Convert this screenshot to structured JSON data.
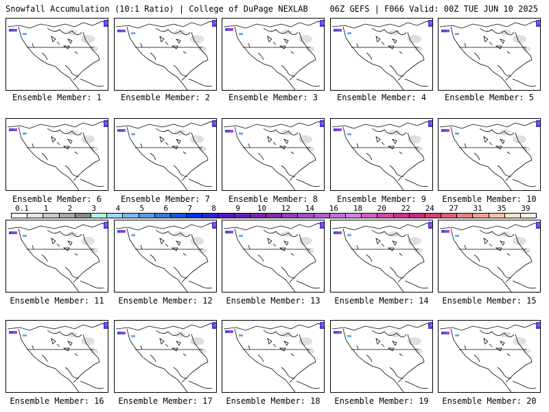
{
  "header": {
    "title": "Snowfall Accumulation (10:1 Ratio) | College of DuPage NEXLAB",
    "run_info": "06Z GEFS | F066 Valid: 00Z TUE JUN 10 2025"
  },
  "members": [
    {
      "label": "Ensemble Member: 1"
    },
    {
      "label": "Ensemble Member: 2"
    },
    {
      "label": "Ensemble Member: 3"
    },
    {
      "label": "Ensemble Member: 4"
    },
    {
      "label": "Ensemble Member: 5"
    },
    {
      "label": "Ensemble Member: 6"
    },
    {
      "label": "Ensemble Member: 7"
    },
    {
      "label": "Ensemble Member: 8"
    },
    {
      "label": "Ensemble Member: 9"
    },
    {
      "label": "Ensemble Member: 10"
    },
    {
      "label": "Ensemble Member: 11"
    },
    {
      "label": "Ensemble Member: 12"
    },
    {
      "label": "Ensemble Member: 13"
    },
    {
      "label": "Ensemble Member: 14"
    },
    {
      "label": "Ensemble Member: 15"
    },
    {
      "label": "Ensemble Member: 16"
    },
    {
      "label": "Ensemble Member: 17"
    },
    {
      "label": "Ensemble Member: 18"
    },
    {
      "label": "Ensemble Member: 19"
    },
    {
      "label": "Ensemble Member: 20"
    }
  ],
  "colorbar": {
    "labels": [
      "0.1",
      "1",
      "2",
      "3",
      "4",
      "5",
      "6",
      "7",
      "8",
      "9",
      "10",
      "12",
      "14",
      "16",
      "18",
      "20",
      "22",
      "24",
      "27",
      "31",
      "35",
      "39"
    ],
    "colors": [
      "#ffffff",
      "#e6e6e6",
      "#c8c8c8",
      "#a8a8a8",
      "#888888",
      "#b8f0f0",
      "#98d8f0",
      "#78b8f0",
      "#5898e8",
      "#3878e0",
      "#1858e0",
      "#0030f0",
      "#3020d8",
      "#5018c8",
      "#6020b8",
      "#7028b0",
      "#8030a8",
      "#9040b8",
      "#a050c8",
      "#b060d0",
      "#c070d8",
      "#d080e0",
      "#d060c0",
      "#d048a8",
      "#d03090",
      "#d02878",
      "#d84070",
      "#e06070",
      "#e88080",
      "#f0a090",
      "#f8c0a8",
      "#fce0c8",
      "#fff0e0"
    ]
  }
}
